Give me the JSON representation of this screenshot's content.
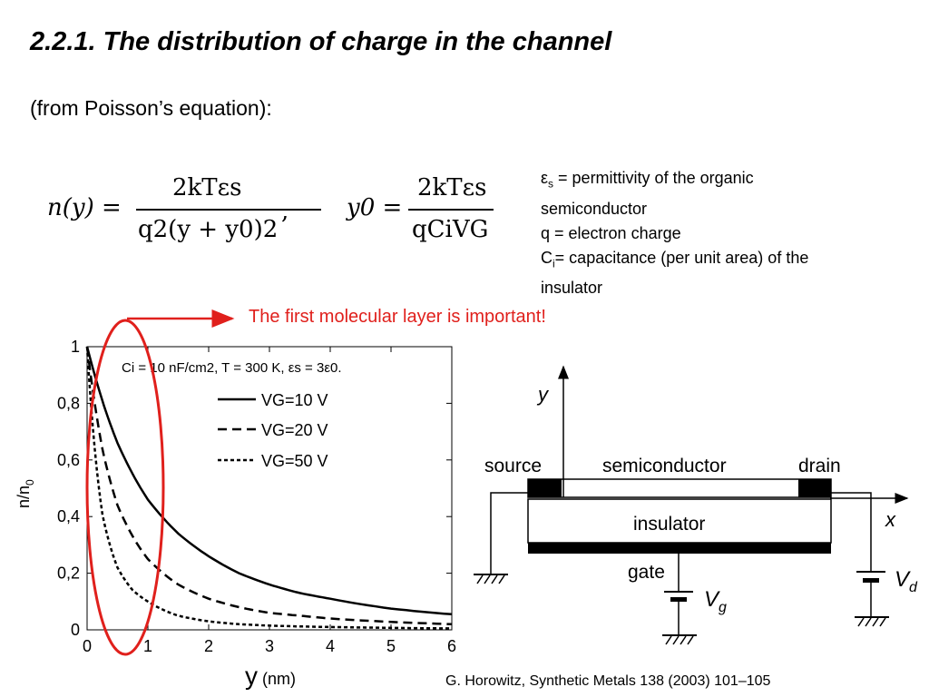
{
  "slide": {
    "title": "2.2.1. The distribution of charge in the channel",
    "subtitle": "(from Poisson’s equation):",
    "equations": {
      "n_lhs": "n(y) =",
      "n_num": "2kTεs",
      "n_den": "q2(y + y0)2",
      "comma": ",",
      "y0_lhs": "y0 =",
      "y0_num": "2kTεs",
      "y0_den": "qCiVG"
    },
    "definitions": {
      "line1_sym": "ε",
      "line1_sub": "s",
      "line1_text": " = permittivity of the organic",
      "line2": "semiconductor",
      "line3": "q = electron charge",
      "line4_sym": "C",
      "line4_sub": "i",
      "line4_text": "= capacitance (per unit area) of the",
      "line5": "insulator"
    },
    "callout": "The first molecular layer is important!",
    "citation": "G. Horowitz, Synthetic Metals 138 (2003) 101–105"
  },
  "chart_data": {
    "type": "line",
    "xlabel": "y (nm)",
    "ylabel": "n/n0",
    "xlim": [
      0,
      6
    ],
    "ylim": [
      0,
      1
    ],
    "x_ticks": [
      "0",
      "1",
      "2",
      "3",
      "4",
      "5",
      "6"
    ],
    "y_ticks": [
      "0",
      "0,2",
      "0,4",
      "0,6",
      "0,8",
      "1"
    ],
    "annotation": "Ci = 10 nF/cm2, T = 300 K, εs = 3ε0.",
    "legend": [
      "VG=10 V",
      "VG=20 V",
      "VG=50 V"
    ],
    "legend_placement": "top-right",
    "series": [
      {
        "name": "VG=10 V",
        "style": "solid",
        "x": [
          0,
          0.25,
          0.5,
          0.75,
          1,
          1.5,
          2,
          2.5,
          3,
          3.5,
          4,
          5,
          6
        ],
        "values": [
          1,
          0.81,
          0.66,
          0.55,
          0.46,
          0.34,
          0.26,
          0.2,
          0.16,
          0.13,
          0.11,
          0.075,
          0.055
        ]
      },
      {
        "name": "VG=20 V",
        "style": "dashed",
        "x": [
          0,
          0.25,
          0.5,
          0.75,
          1,
          1.5,
          2,
          2.5,
          3,
          3.5,
          4,
          5,
          6
        ],
        "values": [
          1,
          0.64,
          0.44,
          0.33,
          0.25,
          0.16,
          0.11,
          0.08,
          0.06,
          0.05,
          0.04,
          0.028,
          0.02
        ]
      },
      {
        "name": "VG=50 V",
        "style": "dotted",
        "x": [
          0,
          0.25,
          0.5,
          0.75,
          1,
          1.5,
          2,
          2.5,
          3,
          3.5,
          4,
          5,
          6
        ],
        "values": [
          1,
          0.41,
          0.22,
          0.14,
          0.1,
          0.05,
          0.03,
          0.02,
          0.015,
          0.012,
          0.01,
          0.007,
          0.005
        ]
      }
    ]
  },
  "diagram": {
    "y_axis": "y",
    "x_axis": "x",
    "source": "source",
    "semiconductor": "semiconductor",
    "drain": "drain",
    "insulator": "insulator",
    "gate": "gate",
    "vg": "V",
    "vg_sub": "g",
    "vd": "V",
    "vd_sub": "d"
  },
  "colors": {
    "accent": "#e0201c",
    "text": "#000000"
  }
}
